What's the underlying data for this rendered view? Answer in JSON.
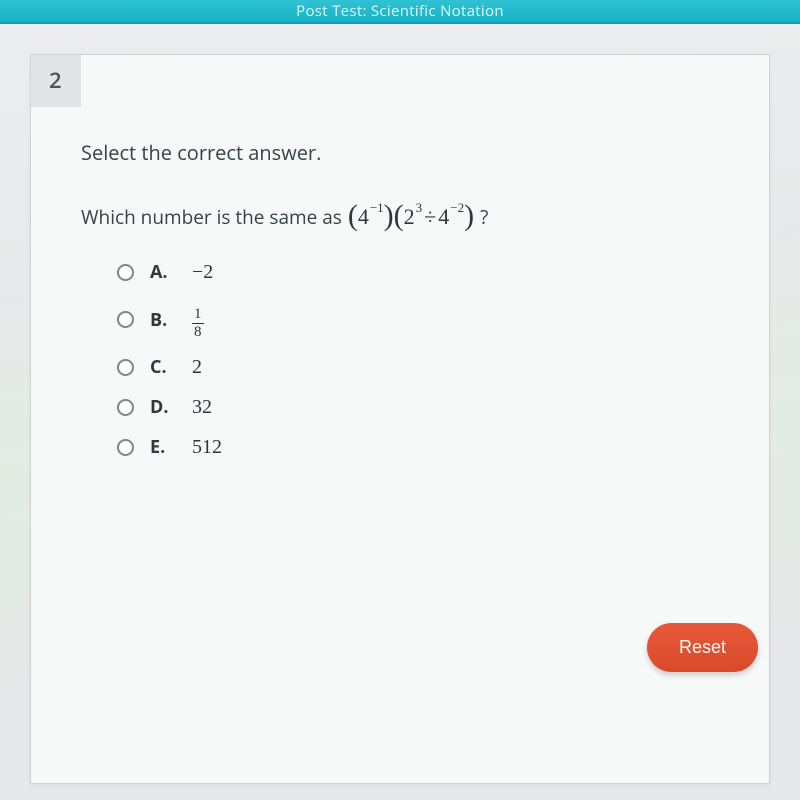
{
  "header": {
    "title_fragment": "Post Test: Scientific Notation"
  },
  "question": {
    "number": "2",
    "instruction": "Select the correct answer.",
    "stem_prefix": "Which number is the same as",
    "stem_suffix": "?",
    "expression": {
      "group1": {
        "base": "4",
        "exp": "−1"
      },
      "group2": {
        "left": {
          "base": "2",
          "exp": "3"
        },
        "op": "÷",
        "right": {
          "base": "4",
          "exp": "−2"
        }
      }
    },
    "choices": [
      {
        "label": "A.",
        "type": "plain",
        "value": "−2"
      },
      {
        "label": "B.",
        "type": "fraction",
        "numerator": "1",
        "denominator": "8"
      },
      {
        "label": "C.",
        "type": "plain",
        "value": "2"
      },
      {
        "label": "D.",
        "type": "plain",
        "value": "32"
      },
      {
        "label": "E.",
        "type": "plain",
        "value": "512"
      }
    ]
  },
  "buttons": {
    "reset": "Reset"
  },
  "colors": {
    "topbar": "#17b2c6",
    "page_bg": "#eceeef",
    "card_bg": "#f7f8f8",
    "qnum_bg": "#e2e4e5",
    "text": "#374249",
    "reset_bg": "#e0502f",
    "reset_text": "#ffffff",
    "radio_border": "#7d868b"
  }
}
